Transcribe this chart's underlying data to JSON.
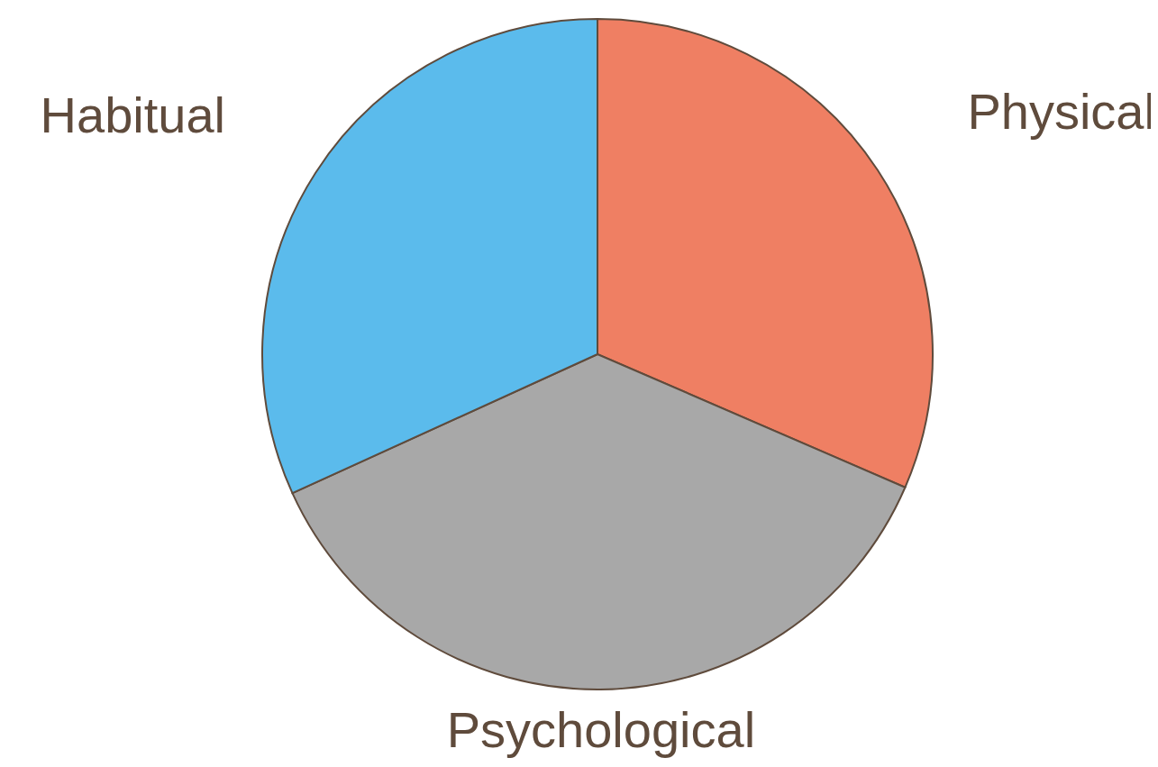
{
  "chart_data": {
    "type": "pie",
    "categories": [
      "Physical",
      "Psychological",
      "Habitual"
    ],
    "values": [
      31.5,
      36.7,
      31.8
    ],
    "colors": [
      "#ef7f63",
      "#a8a8a8",
      "#5bbbec"
    ]
  }
}
